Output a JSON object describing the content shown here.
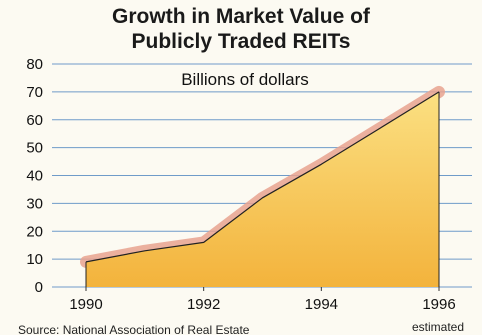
{
  "chart_data": {
    "type": "area",
    "title_line1": "Growth in Market Value of",
    "title_line2": "Publicly Traded REITs",
    "subtitle": "Billions of dollars",
    "x": [
      1990,
      1991,
      1992,
      1993,
      1994,
      1995,
      1996
    ],
    "values": [
      9,
      13,
      16,
      32,
      44,
      57,
      70
    ],
    "xlim": [
      1990,
      1996
    ],
    "ylim": [
      0,
      80
    ],
    "x_ticks": [
      "1990",
      "1992",
      "1994",
      "1996"
    ],
    "y_ticks": [
      "0",
      "10",
      "20",
      "30",
      "40",
      "50",
      "60",
      "70",
      "80"
    ],
    "x_tick_note": "estimated",
    "source": "Source: National Association of Real Estate",
    "grid": true,
    "colors": {
      "fill_top": "#fbe082",
      "fill_bottom": "#f3b33c",
      "line": "#222222",
      "glow": "#e8a28f",
      "grid": "#6f9bc9",
      "background": "#fcfaf2"
    }
  }
}
